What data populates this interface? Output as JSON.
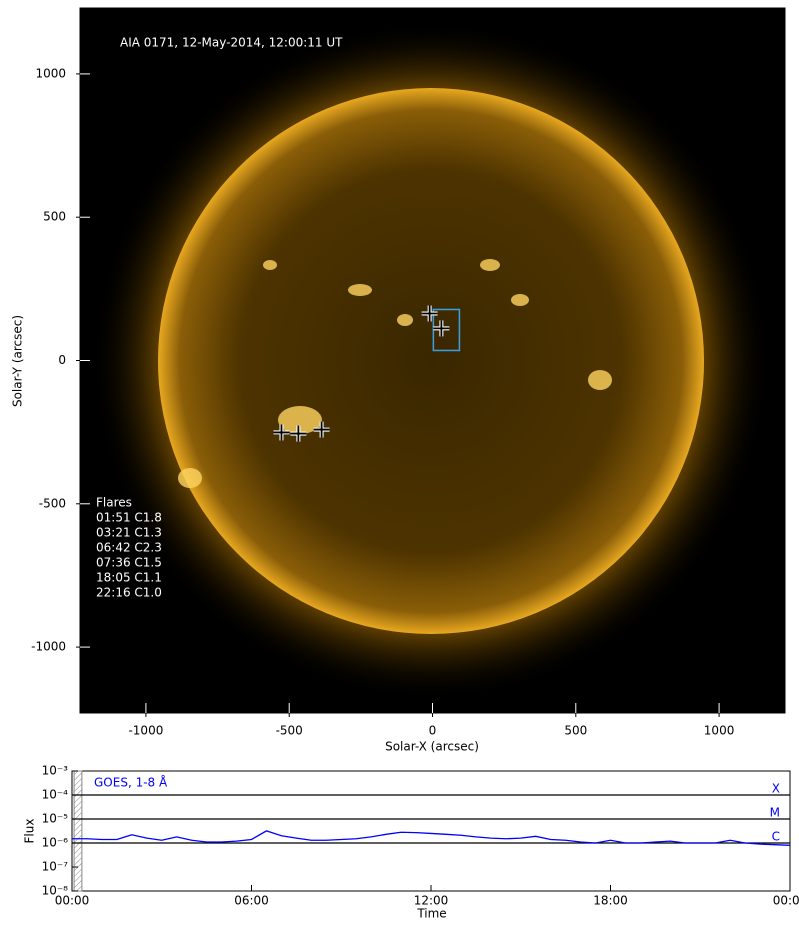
{
  "chart_data": [
    {
      "type": "image",
      "title": "AIA 0171, 12-May-2014, 12:00:11 UT",
      "xlabel": "Solar-X (arcsec)",
      "ylabel": "Solar-Y (arcsec)",
      "xlim": [
        -1230,
        1230
      ],
      "ylim": [
        -1230,
        1230
      ],
      "xticks": [
        -1000,
        -500,
        0,
        500,
        1000
      ],
      "yticks": [
        -1000,
        -500,
        0,
        500,
        1000
      ],
      "markers": {
        "x": [
          -527,
          -468,
          -387,
          -10,
          31
        ],
        "y": [
          -251,
          -255,
          -241,
          164,
          112
        ]
      },
      "box": {
        "x": [
          3,
          94
        ],
        "y": [
          35,
          178
        ],
        "color": "#3ba0e0"
      },
      "flares_title": "Flares",
      "flares": [
        "01:51 C1.8",
        "03:21 C1.3",
        "06:42 C2.3",
        "07:36 C1.5",
        "18:05 C1.1",
        "22:16 C1.0"
      ]
    },
    {
      "type": "line",
      "xlabel": "Time",
      "ylabel": "Flux",
      "log_y": true,
      "xlim": [
        0,
        24
      ],
      "xticks": [
        {
          "value": 0,
          "label": "00:00"
        },
        {
          "value": 6,
          "label": "06:00"
        },
        {
          "value": 12,
          "label": "12:00"
        },
        {
          "value": 18,
          "label": "18:00"
        },
        {
          "value": 24,
          "label": "00:00"
        }
      ],
      "ylim": [
        1e-08,
        0.001
      ],
      "yticks": [
        {
          "value": 1e-08,
          "label": "10⁻⁸"
        },
        {
          "value": 1e-07,
          "label": "10⁻⁷"
        },
        {
          "value": 1e-06,
          "label": "10⁻⁶"
        },
        {
          "value": 1e-05,
          "label": "10⁻⁵"
        },
        {
          "value": 0.0001,
          "label": "10⁻⁴"
        },
        {
          "value": 0.001,
          "label": "10⁻³"
        }
      ],
      "levels": [
        {
          "value": 0.0001,
          "label": "X"
        },
        {
          "value": 1e-05,
          "label": "M"
        },
        {
          "value": 1e-06,
          "label": "C"
        }
      ],
      "shaded": [
        0.07,
        0.33
      ],
      "x": [
        0,
        0.5,
        1,
        1.5,
        2,
        2.5,
        3,
        3.5,
        4,
        4.5,
        5,
        5.5,
        6,
        6.5,
        7,
        7.5,
        8,
        8.5,
        9,
        9.5,
        10,
        10.5,
        11,
        11.5,
        12,
        12.5,
        13,
        13.5,
        14,
        14.5,
        15,
        15.5,
        16,
        16.5,
        17,
        17.5,
        18,
        18.5,
        19,
        19.5,
        20,
        20.5,
        21,
        21.5,
        22,
        22.5,
        23,
        23.5,
        24
      ],
      "series": [
        {
          "name": "GOES, 1-8 Å",
          "color": "#0000ff",
          "values": [
            1.5e-06,
            1.5e-06,
            1.4e-06,
            1.4e-06,
            2.2e-06,
            1.6e-06,
            1.3e-06,
            1.8e-06,
            1.3e-06,
            1.1e-06,
            1.1e-06,
            1.2e-06,
            1.4e-06,
            3.2e-06,
            2e-06,
            1.6e-06,
            1.3e-06,
            1.3e-06,
            1.4e-06,
            1.5e-06,
            1.8e-06,
            2.3e-06,
            2.8e-06,
            2.7e-06,
            2.5e-06,
            2.3e-06,
            2.1e-06,
            1.8e-06,
            1.6e-06,
            1.5e-06,
            1.6e-06,
            1.9e-06,
            1.4e-06,
            1.3e-06,
            1.1e-06,
            1e-06,
            1.3e-06,
            1e-06,
            1e-06,
            1.1e-06,
            1.2e-06,
            1e-06,
            1e-06,
            1e-06,
            1.3e-06,
            1e-06,
            9e-07,
            8.5e-07,
            8e-07
          ]
        }
      ]
    }
  ]
}
